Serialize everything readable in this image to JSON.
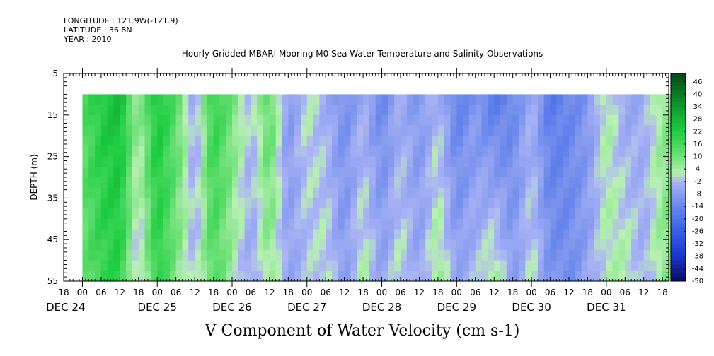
{
  "meta": {
    "longitude": "LONGITUDE : 121.9W(-121.9)",
    "latitude": "LATITUDE : 36.8N",
    "year": "YEAR : 2010"
  },
  "chart_data": {
    "type": "heatmap",
    "title": "Hourly Gridded MBARI Mooring M0 Sea Water Temperature and Salinity Observations",
    "xlabel": "V Component of Water Velocity (cm s-1)",
    "ylabel": "DEPTH (m)",
    "x_range_hours": [
      "2010-12-23T18:00",
      "2010-12-31T20:00"
    ],
    "data_start": "2010-12-24T00:00",
    "ylim": [
      55,
      5
    ],
    "depth_range": [
      10,
      55
    ],
    "y_ticks": [
      "5",
      "15",
      "25",
      "35",
      "45",
      "55"
    ],
    "hour_ticks": [
      "18",
      "00",
      "06",
      "12",
      "18",
      "00",
      "06",
      "12",
      "18",
      "00",
      "06",
      "12",
      "18",
      "00",
      "06",
      "12",
      "18",
      "00",
      "06",
      "12",
      "18",
      "00",
      "06",
      "12",
      "18",
      "00",
      "06",
      "12",
      "18",
      "00",
      "06",
      "12",
      "18"
    ],
    "date_labels": [
      "DEC 24",
      "DEC 25",
      "DEC 26",
      "DEC 27",
      "DEC 28",
      "DEC 29",
      "DEC 30",
      "DEC 31"
    ],
    "colorbar": {
      "range": [
        -50,
        50
      ],
      "tick_labels": [
        "46",
        "40",
        "34",
        "28",
        "22",
        "16",
        "10",
        "4",
        "-2",
        "-8",
        "-14",
        "-20",
        "-26",
        "-32",
        "-38",
        "-44",
        "-50"
      ]
    },
    "profile": {
      "hours": [
        0,
        6,
        12,
        18,
        24,
        30,
        36,
        42,
        48,
        54,
        60,
        66,
        72,
        78,
        84,
        90,
        96,
        102,
        108,
        114,
        120,
        126,
        132,
        138,
        144,
        150,
        156,
        162,
        168,
        174,
        180,
        186,
        192
      ],
      "v_surface": [
        14,
        22,
        26,
        5,
        24,
        14,
        -6,
        20,
        10,
        -2,
        14,
        -10,
        2,
        -4,
        -12,
        -4,
        -14,
        -4,
        -10,
        -2,
        -16,
        -10,
        -18,
        -14,
        -4,
        -18,
        -14,
        -10,
        4,
        -6,
        -4,
        6,
        10
      ],
      "v_bottom": [
        10,
        18,
        20,
        -4,
        20,
        8,
        -2,
        14,
        4,
        -6,
        6,
        -6,
        -2,
        2,
        -8,
        4,
        -6,
        2,
        -6,
        6,
        -6,
        -2,
        6,
        -8,
        2,
        -10,
        -12,
        -6,
        2,
        4,
        -4,
        6,
        8
      ]
    }
  }
}
